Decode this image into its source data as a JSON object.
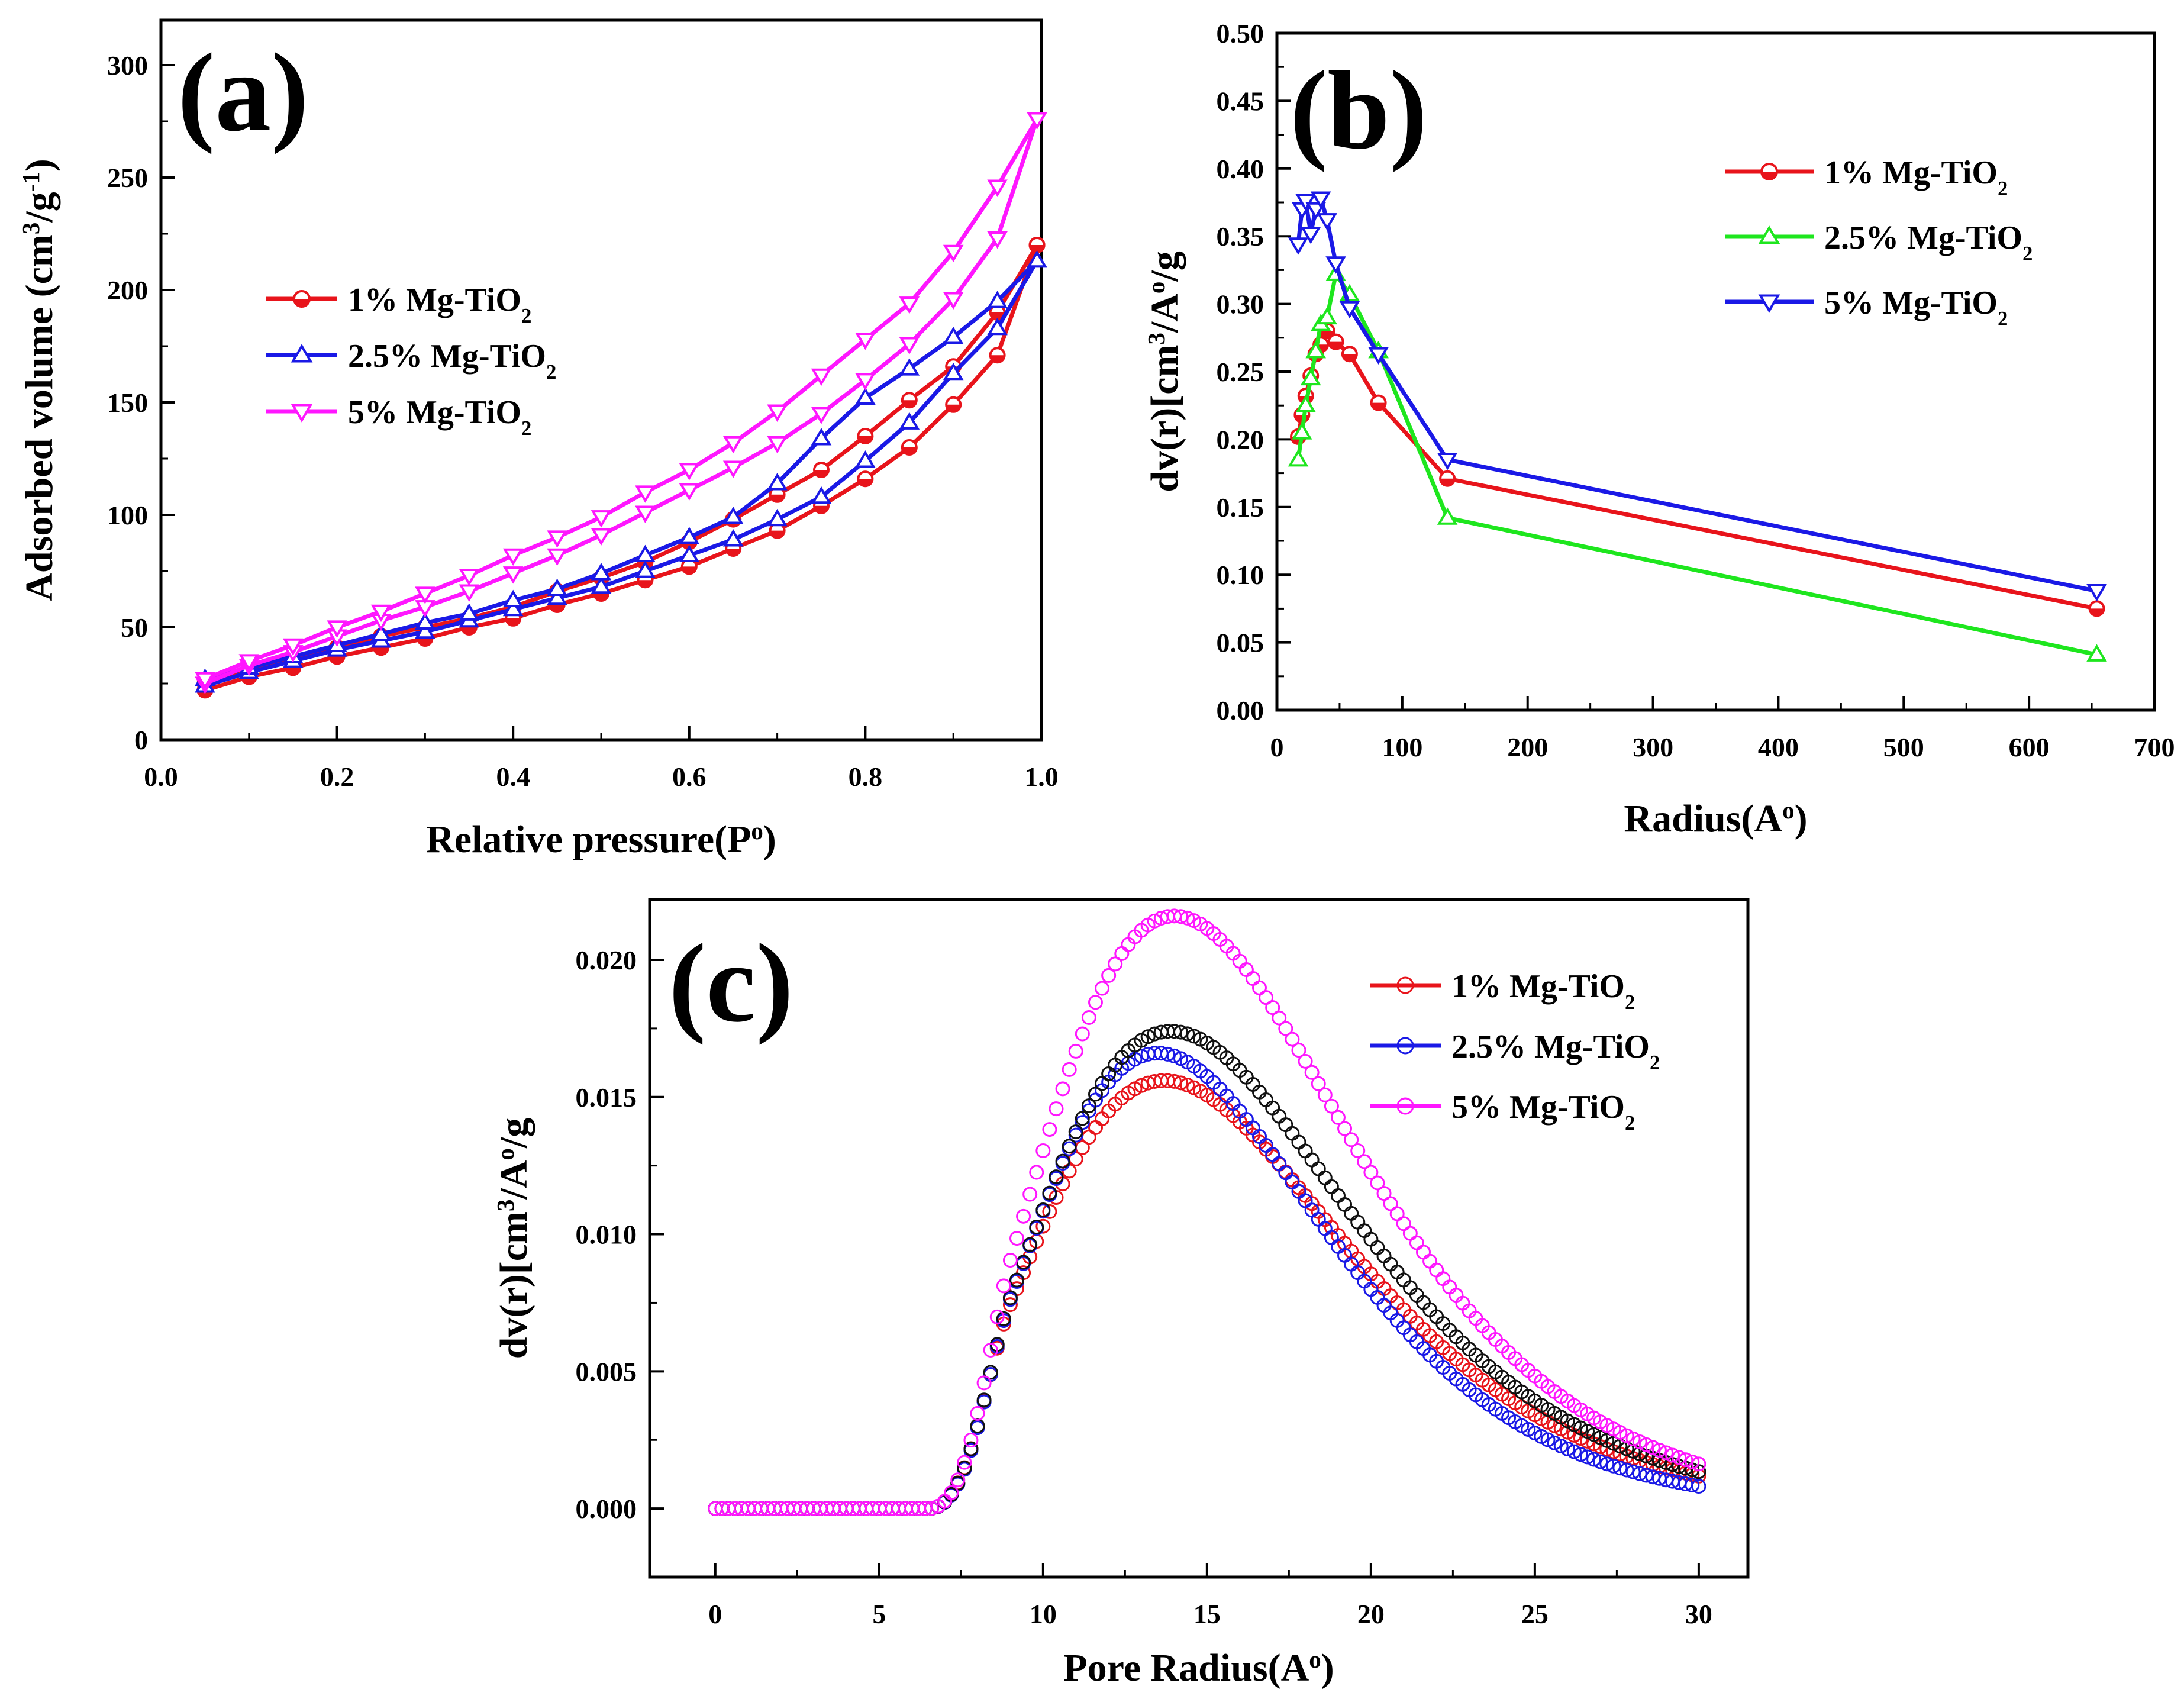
{
  "chart_data": [
    {
      "id": "a",
      "type": "line",
      "panel_label": "(a)",
      "xlabel": "Relative pressure(P",
      "xlabel_sup": "o",
      "xlabel_end": ")",
      "ylabel_parts": [
        "Adsorbed volume (cm",
        "3",
        "/g",
        "-1",
        ")"
      ],
      "xlim": [
        0.0,
        1.0
      ],
      "ylim": [
        0,
        320
      ],
      "x_ticks": [
        0.0,
        0.2,
        0.4,
        0.6,
        0.8,
        1.0
      ],
      "x_tick_labels": [
        "0.0",
        "0.2",
        "0.4",
        "0.6",
        "0.8",
        "1.0"
      ],
      "y_ticks": [
        0,
        50,
        100,
        150,
        200,
        250,
        300
      ],
      "y_tick_labels": [
        "0",
        "50",
        "100",
        "150",
        "200",
        "250",
        "300"
      ],
      "legend_position": "center-left",
      "series": [
        {
          "name": "1% Mg-TiO",
          "name_sub": "2",
          "color": "#e8141b",
          "marker": "circle",
          "adsorption": {
            "x": [
              0.05,
              0.1,
              0.15,
              0.2,
              0.25,
              0.3,
              0.35,
              0.4,
              0.45,
              0.5,
              0.55,
              0.6,
              0.65,
              0.7,
              0.75,
              0.8,
              0.85,
              0.9,
              0.95,
              0.995
            ],
            "y": [
              22,
              28,
              32,
              37,
              41,
              45,
              50,
              54,
              60,
              65,
              71,
              77,
              85,
              93,
              104,
              116,
              130,
              149,
              171,
              220
            ]
          },
          "desorption": {
            "x": [
              0.995,
              0.95,
              0.9,
              0.85,
              0.8,
              0.75,
              0.7,
              0.65,
              0.6,
              0.55,
              0.5,
              0.45,
              0.4,
              0.35,
              0.3,
              0.25,
              0.2,
              0.15,
              0.1,
              0.05
            ],
            "y": [
              220,
              190,
              166,
              151,
              135,
              120,
              109,
              98,
              88,
              79,
              72,
              66,
              59,
              54,
              50,
              46,
              41,
              36,
              31,
              25
            ]
          }
        },
        {
          "name": "2.5% Mg-TiO",
          "name_sub": "2",
          "color": "#1a19e6",
          "marker": "triangle-up",
          "adsorption": {
            "x": [
              0.05,
              0.1,
              0.15,
              0.2,
              0.25,
              0.3,
              0.35,
              0.4,
              0.45,
              0.5,
              0.55,
              0.6,
              0.65,
              0.7,
              0.75,
              0.8,
              0.85,
              0.9,
              0.95,
              0.995
            ],
            "y": [
              24,
              30,
              35,
              40,
              44,
              48,
              53,
              58,
              63,
              68,
              75,
              82,
              89,
              98,
              108,
              124,
              141,
              163,
              183,
              213
            ]
          },
          "desorption": {
            "x": [
              0.995,
              0.95,
              0.9,
              0.85,
              0.8,
              0.75,
              0.7,
              0.65,
              0.6,
              0.55,
              0.5,
              0.45,
              0.4,
              0.35,
              0.3,
              0.25,
              0.2,
              0.15,
              0.1,
              0.05
            ],
            "y": [
              213,
              195,
              179,
              165,
              152,
              134,
              114,
              99,
              90,
              82,
              74,
              67,
              62,
              56,
              52,
              47,
              42,
              37,
              32,
              27
            ]
          }
        },
        {
          "name": "5% Mg-TiO",
          "name_sub": "2",
          "color": "#ff16ff",
          "marker": "triangle-down",
          "adsorption": {
            "x": [
              0.05,
              0.1,
              0.15,
              0.2,
              0.25,
              0.3,
              0.35,
              0.4,
              0.45,
              0.5,
              0.55,
              0.6,
              0.65,
              0.7,
              0.75,
              0.8,
              0.85,
              0.9,
              0.95,
              0.995
            ],
            "y": [
              25,
              33,
              39,
              46,
              53,
              59,
              66,
              74,
              82,
              91,
              101,
              111,
              121,
              132,
              145,
              160,
              176,
              196,
              223,
              276
            ]
          },
          "desorption": {
            "x": [
              0.995,
              0.95,
              0.9,
              0.85,
              0.8,
              0.75,
              0.7,
              0.65,
              0.6,
              0.55,
              0.5,
              0.45,
              0.4,
              0.35,
              0.3,
              0.25,
              0.2,
              0.15,
              0.1,
              0.05
            ],
            "y": [
              276,
              246,
              217,
              194,
              178,
              162,
              146,
              132,
              120,
              110,
              99,
              90,
              82,
              73,
              65,
              57,
              50,
              42,
              35,
              27
            ]
          }
        }
      ]
    },
    {
      "id": "b",
      "type": "line",
      "panel_label": "(b)",
      "xlabel": "Radius(A",
      "xlabel_sup": "o",
      "xlabel_end": ")",
      "ylabel_parts": [
        "dv(r)[cm",
        "3",
        "/A",
        "o",
        "/g"
      ],
      "xlim": [
        0,
        700
      ],
      "ylim": [
        0.0,
        0.5
      ],
      "x_ticks": [
        0,
        100,
        200,
        300,
        400,
        500,
        600,
        700
      ],
      "x_tick_labels": [
        "0",
        "100",
        "200",
        "300",
        "400",
        "500",
        "600",
        "700"
      ],
      "y_ticks": [
        0.0,
        0.05,
        0.1,
        0.15,
        0.2,
        0.25,
        0.3,
        0.35,
        0.4,
        0.45,
        0.5
      ],
      "y_tick_labels": [
        "0.00",
        "0.05",
        "0.10",
        "0.15",
        "0.20",
        "0.25",
        "0.30",
        "0.35",
        "0.40",
        "0.45",
        "0.50"
      ],
      "legend_position": "top-right",
      "series": [
        {
          "name": "1% Mg-TiO",
          "name_sub": "2",
          "color": "#e8141b",
          "marker": "circle",
          "x": [
            17,
            20,
            23,
            27,
            31,
            35,
            40,
            47,
            58,
            81,
            136,
            654
          ],
          "y": [
            0.202,
            0.218,
            0.232,
            0.247,
            0.263,
            0.27,
            0.28,
            0.272,
            0.263,
            0.227,
            0.171,
            0.075
          ]
        },
        {
          "name": "2.5% Mg-TiO",
          "name_sub": "2",
          "color": "#1ee61e",
          "marker": "triangle-up",
          "x": [
            17,
            20,
            23,
            27,
            31,
            35,
            40,
            47,
            58,
            81,
            136,
            654
          ],
          "y": [
            0.185,
            0.205,
            0.225,
            0.245,
            0.265,
            0.285,
            0.29,
            0.322,
            0.307,
            0.265,
            0.142,
            0.041
          ]
        },
        {
          "name": "5% Mg-TiO",
          "name_sub": "2",
          "color": "#1a19e6",
          "marker": "triangle-down",
          "x": [
            17,
            20,
            23,
            27,
            31,
            35,
            40,
            47,
            58,
            81,
            136,
            654
          ],
          "y": [
            0.344,
            0.37,
            0.376,
            0.352,
            0.37,
            0.378,
            0.362,
            0.33,
            0.297,
            0.263,
            0.185,
            0.088
          ]
        }
      ]
    },
    {
      "id": "c",
      "type": "scatter",
      "panel_label": "(c)",
      "xlabel": "Pore Radius(A",
      "xlabel_sup": "o",
      "xlabel_end": ")",
      "ylabel_parts": [
        "dv(r)[cm",
        "3",
        "/A",
        "o",
        "/g"
      ],
      "xlim": [
        -2,
        31.5
      ],
      "ylim": [
        -0.0025,
        0.0222
      ],
      "x_ticks": [
        0,
        5,
        10,
        15,
        20,
        25,
        30
      ],
      "x_tick_labels": [
        "0",
        "5",
        "10",
        "15",
        "20",
        "25",
        "30"
      ],
      "y_ticks": [
        0.0,
        0.005,
        0.01,
        0.015,
        0.02
      ],
      "y_tick_labels": [
        "0.000",
        "0.005",
        "0.010",
        "0.015",
        "0.020"
      ],
      "legend_position": "top-right",
      "curve_model": "lognormal: amp*exp(-(ln(r/peak))^2/(2*sigma^2)) for r>6.5, zero below",
      "x_step": 0.2,
      "series": [
        {
          "name": "1% Mg-TiO",
          "name_sub": "2",
          "color": "#e8141b",
          "marker": "open-circle",
          "peak_x": 13.7,
          "peak_y": 0.0156,
          "sigma": 0.345,
          "in_legend": true
        },
        {
          "name": "2.5% Mg-TiO",
          "name_sub": "2",
          "color": "#1a19e6",
          "marker": "open-circle",
          "peak_x": 13.5,
          "peak_y": 0.0166,
          "sigma": 0.325,
          "in_legend": true
        },
        {
          "name": "",
          "name_sub": "",
          "color": "#111111",
          "marker": "open-circle",
          "peak_x": 13.9,
          "peak_y": 0.0174,
          "sigma": 0.34,
          "in_legend": false
        },
        {
          "name": "5% Mg-TiO",
          "name_sub": "2",
          "color": "#ff16ff",
          "marker": "open-circle",
          "peak_x": 14.0,
          "peak_y": 0.0216,
          "sigma": 0.335,
          "in_legend": true
        }
      ]
    }
  ]
}
